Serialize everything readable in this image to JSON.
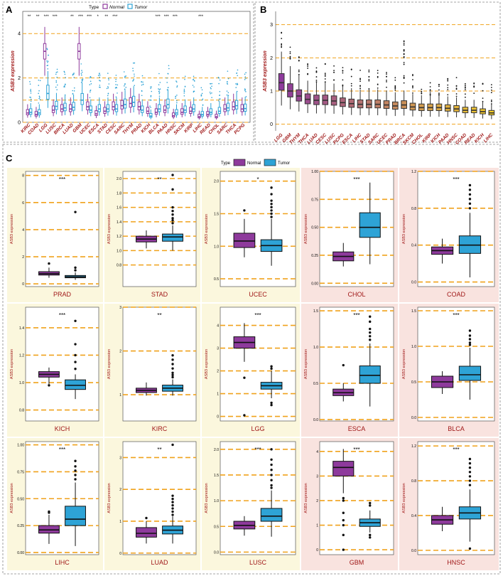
{
  "colors": {
    "normal": "#8e3a9c",
    "tumor": "#2ea3d6",
    "dash": "#f0a21c",
    "label": "#a01818",
    "bg_yellow": "#fbf7dd",
    "bg_pink": "#f9e3df"
  },
  "panel_a": {
    "letter": "A",
    "ylabel": "ASB3 expression",
    "legend": {
      "title": "Type",
      "items": [
        "Normal",
        "Tumor"
      ]
    },
    "chart_data": {
      "type": "boxplot",
      "ylim": [
        0,
        5
      ],
      "yticks": [
        0,
        2,
        4
      ],
      "gridlines": [
        0,
        1,
        2,
        4
      ],
      "categories": [
        "KIRC",
        "COAD",
        "LGG",
        "LUSC",
        "BRCA",
        "LUAD",
        "GBM",
        "UCEC",
        "ESCA",
        "STAD",
        "CESC",
        "SARC",
        "THYM",
        "PRAD",
        "KICH",
        "BLCA",
        "PAAD",
        "HNSC",
        "SKCM",
        "KIRP",
        "LIHC",
        "READ",
        "CHOL",
        "SARC",
        "THCA",
        "PCPG"
      ],
      "signif": [
        "**",
        "**",
        "***",
        "***",
        "",
        "**",
        "***",
        "***",
        "*",
        "**",
        "***",
        "",
        "",
        "",
        "",
        "***",
        "***",
        "***",
        "",
        "",
        "***",
        "",
        "",
        "",
        "",
        ""
      ],
      "series": [
        {
          "name": "Normal",
          "medians": [
            0.42,
            0.35,
            3.2,
            0.55,
            0.6,
            0.6,
            3.2,
            0.7,
            0.38,
            0.5,
            0.7,
            0.75,
            0.85,
            0.7,
            0.5,
            0.45,
            0.55,
            0.3,
            0.45,
            0.5,
            0.25,
            0.35,
            0.25,
            0.6,
            0.7,
            0.6
          ]
        },
        {
          "name": "Tumor",
          "medians": [
            0.45,
            0.42,
            1.3,
            0.72,
            0.65,
            0.68,
            1.0,
            0.55,
            0.6,
            0.6,
            0.6,
            0.8,
            0.9,
            0.55,
            0.28,
            0.6,
            0.8,
            0.42,
            0.55,
            0.6,
            0.35,
            0.45,
            0.5,
            0.65,
            0.75,
            0.62
          ]
        }
      ]
    }
  },
  "panel_b": {
    "letter": "B",
    "ylabel": "ASB3 expression",
    "chart_data": {
      "type": "boxplot",
      "ylim": [
        -0.2,
        3.4
      ],
      "yticks": [
        0,
        1,
        2,
        3
      ],
      "gridlines": [
        0,
        1,
        2,
        3
      ],
      "categories": [
        "LGG",
        "GBM",
        "THYM",
        "THCA",
        "LUAD",
        "CESC",
        "LUSC",
        "PCPG",
        "ESCA",
        "LIHC",
        "STAD",
        "SARC",
        "UCEC",
        "PRAD",
        "BRCA",
        "SKCM",
        "CHOL",
        "KIRP",
        "KICH",
        "PAAD",
        "HNSC",
        "COAD",
        "READ",
        "KICH",
        "LIHC"
      ],
      "medians": [
        1.25,
        1.0,
        0.85,
        0.75,
        0.72,
        0.72,
        0.7,
        0.65,
        0.62,
        0.6,
        0.6,
        0.6,
        0.58,
        0.55,
        0.58,
        0.52,
        0.5,
        0.5,
        0.5,
        0.48,
        0.46,
        0.42,
        0.42,
        0.38,
        0.34
      ]
    }
  },
  "panel_c": {
    "letter": "C",
    "ylabel": "ASB3 expression",
    "legend": {
      "title": "Type",
      "items": [
        "Normal",
        "Tumor"
      ]
    },
    "chart_data": [
      {
        "cancer": "PRAD",
        "signif": "***",
        "ylim": [
          -0.2,
          8.3
        ],
        "ticks": [
          {
            "v": 0,
            "l": "0"
          },
          {
            "v": 2,
            "l": "2"
          },
          {
            "v": 4,
            "l": "4"
          },
          {
            "v": 6,
            "l": "6"
          },
          {
            "v": 8,
            "l": "8"
          }
        ],
        "normal": {
          "q1": 0.65,
          "med": 0.75,
          "q3": 0.9,
          "wl": 0.45,
          "wh": 1.2,
          "out": [
            1.5
          ]
        },
        "tumor": {
          "q1": 0.45,
          "med": 0.52,
          "q3": 0.62,
          "wl": 0.3,
          "wh": 0.85,
          "out": [
            1.0,
            1.2,
            5.3
          ]
        }
      },
      {
        "cancer": "STAD",
        "signif": "**",
        "ylim": [
          0.5,
          2.1
        ],
        "ticks": [
          {
            "v": 0.8,
            "l": "0.8"
          },
          {
            "v": 1.0,
            "l": "1.0"
          },
          {
            "v": 1.2,
            "l": "1.2"
          },
          {
            "v": 1.4,
            "l": "1.4"
          },
          {
            "v": 1.6,
            "l": "1.6"
          },
          {
            "v": 1.8,
            "l": "1.8"
          },
          {
            "v": 2.0,
            "l": "2.0"
          }
        ],
        "normal": {
          "q1": 1.12,
          "med": 1.16,
          "q3": 1.2,
          "wl": 1.03,
          "wh": 1.28,
          "out": []
        },
        "tumor": {
          "q1": 1.13,
          "med": 1.19,
          "q3": 1.23,
          "wl": 1.0,
          "wh": 1.35,
          "out": [
            1.38,
            1.42,
            1.45,
            1.5,
            1.55,
            1.6,
            1.85,
            2.05
          ]
        }
      },
      {
        "cancer": "UCEC",
        "signif": "*",
        "ylim": [
          0.38,
          2.15
        ],
        "ticks": [
          {
            "v": 0.5,
            "l": "0.5"
          },
          {
            "v": 1.0,
            "l": "1.0"
          },
          {
            "v": 1.5,
            "l": "1.5"
          },
          {
            "v": 2.0,
            "l": "2.0"
          }
        ],
        "normal": {
          "q1": 0.98,
          "med": 1.08,
          "q3": 1.2,
          "wl": 0.83,
          "wh": 1.42,
          "out": [
            1.55
          ]
        },
        "tumor": {
          "q1": 0.92,
          "med": 1.01,
          "q3": 1.1,
          "wl": 0.7,
          "wh": 1.42,
          "out": [
            1.45,
            1.5,
            1.55,
            1.6,
            1.65,
            1.7,
            1.8,
            1.9
          ]
        }
      },
      {
        "cancer": "CHOL",
        "signif": "***",
        "ylim": [
          -0.03,
          1.0
        ],
        "ticks": [
          {
            "v": 0,
            "l": "0.00"
          },
          {
            "v": 0.25,
            "l": "0.25"
          },
          {
            "v": 0.5,
            "l": "0.50"
          },
          {
            "v": 0.75,
            "l": "0.75"
          },
          {
            "v": 1.0,
            "l": "1.00"
          }
        ],
        "normal": {
          "q1": 0.2,
          "med": 0.24,
          "q3": 0.28,
          "wl": 0.15,
          "wh": 0.36,
          "out": []
        },
        "tumor": {
          "q1": 0.41,
          "med": 0.5,
          "q3": 0.63,
          "wl": 0.17,
          "wh": 0.9,
          "out": []
        }
      },
      {
        "cancer": "COAD",
        "signif": "***",
        "ylim": [
          -0.05,
          1.2
        ],
        "ticks": [
          {
            "v": 0,
            "l": "0.0"
          },
          {
            "v": 0.4,
            "l": "0.4"
          },
          {
            "v": 0.8,
            "l": "0.8"
          },
          {
            "v": 1.2,
            "l": "1.2"
          }
        ],
        "normal": {
          "q1": 0.3,
          "med": 0.34,
          "q3": 0.38,
          "wl": 0.2,
          "wh": 0.47,
          "out": []
        },
        "tumor": {
          "q1": 0.31,
          "med": 0.4,
          "q3": 0.5,
          "wl": 0.05,
          "wh": 0.75,
          "out": [
            0.8,
            0.85,
            0.9,
            0.95,
            1.0,
            1.05
          ]
        }
      },
      {
        "cancer": "KICH",
        "signif": "***",
        "ylim": [
          0.72,
          1.55
        ],
        "ticks": [
          {
            "v": 0.8,
            "l": "0.8"
          },
          {
            "v": 1.0,
            "l": "1.0"
          },
          {
            "v": 1.2,
            "l": "1.2"
          },
          {
            "v": 1.4,
            "l": "1.4"
          }
        ],
        "normal": {
          "q1": 1.04,
          "med": 1.06,
          "q3": 1.08,
          "wl": 0.99,
          "wh": 1.11,
          "out": [
            0.98
          ]
        },
        "tumor": {
          "q1": 0.95,
          "med": 0.98,
          "q3": 1.02,
          "wl": 0.88,
          "wh": 1.06,
          "out": [
            1.1,
            1.15,
            1.2,
            1.28,
            1.45
          ]
        }
      },
      {
        "cancer": "KIRC",
        "signif": "**",
        "ylim": [
          0.4,
          3.0
        ],
        "ticks": [
          {
            "v": 1,
            "l": "1"
          },
          {
            "v": 2,
            "l": "2"
          },
          {
            "v": 3,
            "l": "3"
          }
        ],
        "normal": {
          "q1": 1.05,
          "med": 1.1,
          "q3": 1.15,
          "wl": 0.98,
          "wh": 1.28,
          "out": []
        },
        "tumor": {
          "q1": 1.08,
          "med": 1.15,
          "q3": 1.22,
          "wl": 0.98,
          "wh": 1.35,
          "out": [
            1.4,
            1.45,
            1.5,
            1.6,
            1.7,
            1.8,
            1.9
          ]
        }
      },
      {
        "cancer": "LGG",
        "signif": "***",
        "ylim": [
          -0.2,
          4.8
        ],
        "ticks": [
          {
            "v": 0,
            "l": "0"
          },
          {
            "v": 1,
            "l": "1"
          },
          {
            "v": 2,
            "l": "2"
          },
          {
            "v": 3,
            "l": "3"
          },
          {
            "v": 4,
            "l": "4"
          }
        ],
        "normal": {
          "q1": 3.0,
          "med": 3.25,
          "q3": 3.5,
          "wl": 2.4,
          "wh": 4.1,
          "out": [
            0.05,
            1.7
          ]
        },
        "tumor": {
          "q1": 1.2,
          "med": 1.35,
          "q3": 1.5,
          "wl": 0.8,
          "wh": 2.0,
          "out": [
            0.5,
            0.6,
            2.1,
            2.2
          ]
        }
      },
      {
        "cancer": "ESCA",
        "signif": "***",
        "ylim": [
          -0.02,
          1.55
        ],
        "ticks": [
          {
            "v": 0,
            "l": "0.0"
          },
          {
            "v": 0.5,
            "l": "0.5"
          },
          {
            "v": 1.0,
            "l": "1.0"
          },
          {
            "v": 1.5,
            "l": "1.5"
          }
        ],
        "normal": {
          "q1": 0.33,
          "med": 0.37,
          "q3": 0.42,
          "wl": 0.25,
          "wh": 0.5,
          "out": [
            0.75
          ]
        },
        "tumor": {
          "q1": 0.5,
          "med": 0.61,
          "q3": 0.74,
          "wl": 0.18,
          "wh": 1.05,
          "out": [
            1.1,
            1.15,
            1.2,
            1.25,
            1.35,
            1.42
          ]
        }
      },
      {
        "cancer": "BLCA",
        "signif": "***",
        "ylim": [
          -0.05,
          1.55
        ],
        "ticks": [
          {
            "v": 0,
            "l": "0.0"
          },
          {
            "v": 0.5,
            "l": "0.5"
          },
          {
            "v": 1.0,
            "l": "1.0"
          },
          {
            "v": 1.5,
            "l": "1.5"
          }
        ],
        "normal": {
          "q1": 0.42,
          "med": 0.5,
          "q3": 0.58,
          "wl": 0.33,
          "wh": 0.65,
          "out": []
        },
        "tumor": {
          "q1": 0.52,
          "med": 0.6,
          "q3": 0.72,
          "wl": 0.25,
          "wh": 0.98,
          "out": [
            1.02,
            1.05,
            1.1,
            1.15,
            1.22
          ]
        }
      },
      {
        "cancer": "LIHC",
        "signif": "***",
        "ylim": [
          -0.02,
          1.03
        ],
        "ticks": [
          {
            "v": 0,
            "l": "0.00"
          },
          {
            "v": 0.25,
            "l": "0.25"
          },
          {
            "v": 0.5,
            "l": "0.50"
          },
          {
            "v": 0.75,
            "l": "0.75"
          },
          {
            "v": 1.0,
            "l": "1.00"
          }
        ],
        "normal": {
          "q1": 0.18,
          "med": 0.21,
          "q3": 0.25,
          "wl": 0.08,
          "wh": 0.35,
          "out": [
            0.37,
            0.38
          ]
        },
        "tumor": {
          "q1": 0.25,
          "med": 0.31,
          "q3": 0.43,
          "wl": 0.06,
          "wh": 0.65,
          "out": [
            0.68,
            0.72,
            0.76,
            0.8,
            0.85
          ]
        }
      },
      {
        "cancer": "LUAD",
        "signif": "**",
        "ylim": [
          -0.05,
          3.5
        ],
        "ticks": [
          {
            "v": 0,
            "l": "0"
          },
          {
            "v": 1,
            "l": "1"
          },
          {
            "v": 2,
            "l": "2"
          },
          {
            "v": 3,
            "l": "3"
          }
        ],
        "normal": {
          "q1": 0.5,
          "med": 0.62,
          "q3": 0.8,
          "wl": 0.3,
          "wh": 1.0,
          "out": [
            1.1
          ]
        },
        "tumor": {
          "q1": 0.6,
          "med": 0.72,
          "q3": 0.85,
          "wl": 0.3,
          "wh": 1.15,
          "out": [
            1.2,
            1.3,
            1.4,
            1.5,
            1.6,
            1.7,
            1.8,
            3.4
          ]
        }
      },
      {
        "cancer": "LUSC",
        "signif": "***",
        "ylim": [
          -0.05,
          2.15
        ],
        "ticks": [
          {
            "v": 0,
            "l": "0.0"
          },
          {
            "v": 0.5,
            "l": "0.5"
          },
          {
            "v": 1.0,
            "l": "1.0"
          },
          {
            "v": 1.5,
            "l": "1.5"
          },
          {
            "v": 2.0,
            "l": "2.0"
          }
        ],
        "normal": {
          "q1": 0.45,
          "med": 0.52,
          "q3": 0.6,
          "wl": 0.32,
          "wh": 0.7,
          "out": []
        },
        "tumor": {
          "q1": 0.6,
          "med": 0.7,
          "q3": 0.85,
          "wl": 0.3,
          "wh": 1.2,
          "out": [
            1.25,
            1.3,
            1.4,
            1.5,
            1.6,
            1.7,
            1.8,
            2.0
          ]
        }
      },
      {
        "cancer": "GBM",
        "signif": "***",
        "ylim": [
          -0.2,
          4.4
        ],
        "ticks": [
          {
            "v": 0,
            "l": "0"
          },
          {
            "v": 1,
            "l": "1"
          },
          {
            "v": 2,
            "l": "2"
          },
          {
            "v": 3,
            "l": "3"
          },
          {
            "v": 4,
            "l": "4"
          }
        ],
        "normal": {
          "q1": 3.0,
          "med": 3.35,
          "q3": 3.6,
          "wl": 2.3,
          "wh": 4.1,
          "out": [
            0.0,
            0.6,
            1.0,
            1.2,
            1.5,
            2.0,
            2.1
          ]
        },
        "tumor": {
          "q1": 0.95,
          "med": 1.1,
          "q3": 1.25,
          "wl": 0.7,
          "wh": 1.6,
          "out": [
            1.8,
            1.9,
            0.6,
            0.5
          ]
        }
      },
      {
        "cancer": "HNSC",
        "signif": "***",
        "ylim": [
          -0.05,
          1.25
        ],
        "ticks": [
          {
            "v": 0,
            "l": "0.0"
          },
          {
            "v": 0.4,
            "l": "0.4"
          },
          {
            "v": 0.8,
            "l": "0.8"
          },
          {
            "v": 1.2,
            "l": "1.2"
          }
        ],
        "normal": {
          "q1": 0.3,
          "med": 0.35,
          "q3": 0.4,
          "wl": 0.22,
          "wh": 0.5,
          "out": []
        },
        "tumor": {
          "q1": 0.36,
          "med": 0.43,
          "q3": 0.5,
          "wl": 0.1,
          "wh": 0.7,
          "out": [
            0.02,
            0.75,
            0.8,
            0.85,
            0.9,
            0.95,
            1.0,
            1.05
          ]
        }
      }
    ]
  }
}
